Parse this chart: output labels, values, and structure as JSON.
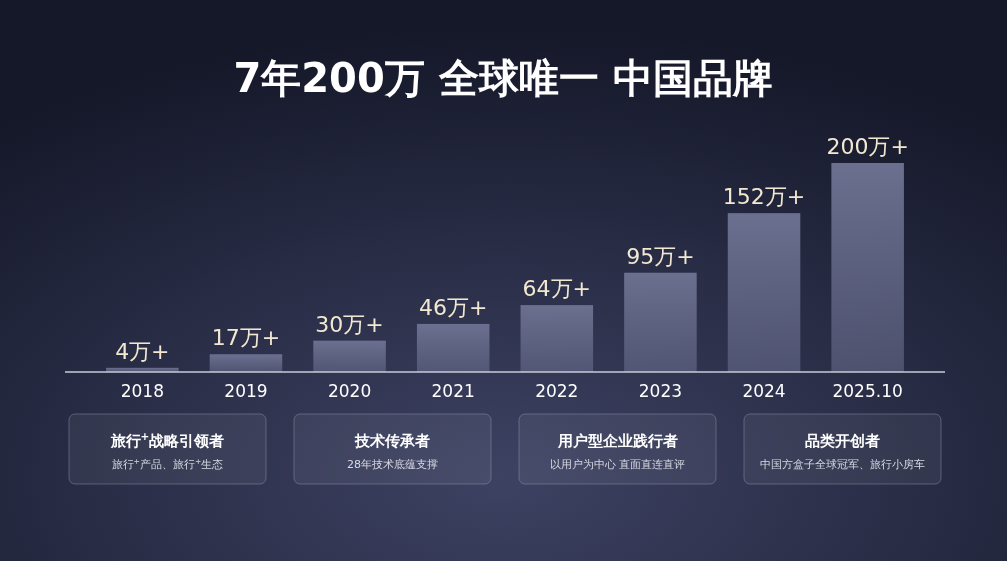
{
  "chart_data": {
    "type": "bar",
    "title": "7年200万 全球唯一 中国品牌",
    "categories": [
      "2018",
      "2019",
      "2020",
      "2021",
      "2022",
      "2023",
      "2024",
      "2025.10"
    ],
    "values": [
      4,
      17,
      30,
      46,
      64,
      95,
      152,
      200
    ],
    "value_labels": [
      "4万+",
      "17万+",
      "30万+",
      "46万+",
      "64万+",
      "95万+",
      "152万+",
      "200万+"
    ],
    "color": "#6b7090",
    "annotations": [
      "旅行$^{+}$战略引领者",
      "旅行$^{+}$产品、旅行$^{+}$生态",
      "技术传承者",
      "28年技术底蕴支撑",
      "用户型企业践行者",
      "以用户为中心  直面直连直评",
      "品类开创者",
      "中国方盒子全球冠军、旅行小房车"
    ]
  }
}
